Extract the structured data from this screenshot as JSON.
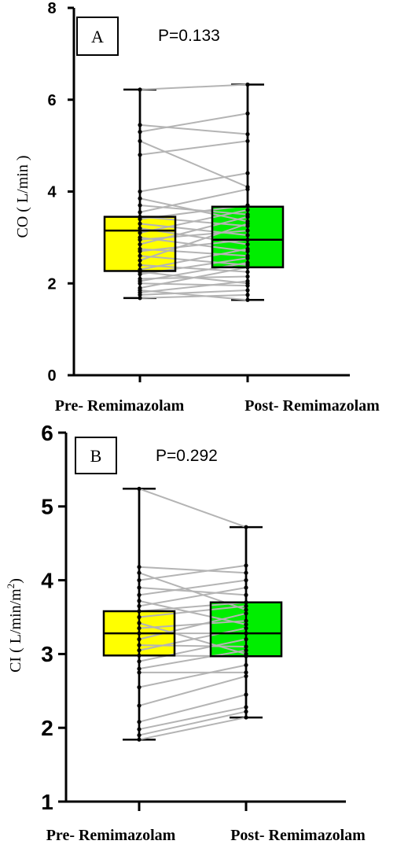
{
  "chart_data": [
    {
      "type": "box",
      "panel_label": "A",
      "p_value": "P=0.133",
      "ylabel": "CO ( L/min )",
      "ylim": [
        0,
        8
      ],
      "yticks": [
        0,
        2,
        4,
        6,
        8
      ],
      "categories": [
        "Pre- Remimazolam",
        "Post- Remimazolam"
      ],
      "box_colors": [
        "#ffff00",
        "#00ee00"
      ],
      "grid": false,
      "boxes": [
        {
          "min": 1.68,
          "q1": 2.27,
          "median": 3.15,
          "q3": 3.45,
          "max": 6.22
        },
        {
          "min": 1.64,
          "q1": 2.35,
          "median": 2.95,
          "q3": 3.67,
          "max": 6.33
        }
      ],
      "pairs": [
        [
          1.68,
          1.75
        ],
        [
          1.75,
          1.85
        ],
        [
          1.8,
          2.05
        ],
        [
          1.85,
          1.64
        ],
        [
          1.9,
          2.35
        ],
        [
          2.0,
          1.95
        ],
        [
          2.05,
          2.45
        ],
        [
          2.1,
          2.15
        ],
        [
          2.2,
          2.55
        ],
        [
          2.25,
          2.0
        ],
        [
          2.3,
          2.75
        ],
        [
          2.4,
          2.25
        ],
        [
          2.5,
          3.3
        ],
        [
          2.6,
          2.4
        ],
        [
          2.7,
          2.95
        ],
        [
          2.75,
          2.6
        ],
        [
          2.85,
          3.45
        ],
        [
          2.95,
          3.15
        ],
        [
          3.0,
          2.7
        ],
        [
          3.1,
          3.6
        ],
        [
          3.2,
          2.85
        ],
        [
          3.3,
          3.05
        ],
        [
          3.4,
          3.7
        ],
        [
          3.45,
          3.25
        ],
        [
          3.55,
          4.05
        ],
        [
          3.7,
          3.5
        ],
        [
          3.85,
          3.35
        ],
        [
          4.0,
          4.4
        ],
        [
          4.8,
          5.1
        ],
        [
          5.1,
          4.1
        ],
        [
          5.3,
          5.7
        ],
        [
          5.45,
          5.25
        ],
        [
          6.22,
          6.33
        ]
      ]
    },
    {
      "type": "box",
      "panel_label": "B",
      "p_value": "P=0.292",
      "ylabel": "CI ( L/min/m",
      "ylabel_superscript": "2",
      "ylabel_suffix": ")",
      "ylim": [
        1,
        6
      ],
      "yticks": [
        1,
        2,
        3,
        4,
        5,
        6
      ],
      "categories": [
        "Pre- Remimazolam",
        "Post- Remimazolam"
      ],
      "box_colors": [
        "#ffff00",
        "#00ee00"
      ],
      "grid": false,
      "boxes": [
        {
          "min": 1.84,
          "q1": 2.98,
          "median": 3.28,
          "q3": 3.58,
          "max": 5.24
        },
        {
          "min": 2.14,
          "q1": 2.97,
          "median": 3.28,
          "q3": 3.7,
          "max": 4.72
        }
      ],
      "pairs": [
        [
          1.84,
          2.14
        ],
        [
          1.9,
          2.22
        ],
        [
          1.98,
          2.28
        ],
        [
          2.08,
          2.45
        ],
        [
          2.3,
          2.7
        ],
        [
          2.55,
          2.85
        ],
        [
          2.75,
          2.75
        ],
        [
          2.8,
          3.05
        ],
        [
          2.9,
          3.2
        ],
        [
          2.98,
          2.97
        ],
        [
          3.05,
          3.35
        ],
        [
          3.12,
          3.1
        ],
        [
          3.2,
          3.55
        ],
        [
          3.28,
          3.28
        ],
        [
          3.35,
          3.45
        ],
        [
          3.42,
          3.0
        ],
        [
          3.5,
          3.65
        ],
        [
          3.58,
          3.7
        ],
        [
          3.65,
          3.9
        ],
        [
          3.72,
          3.4
        ],
        [
          3.8,
          4.0
        ],
        [
          3.9,
          3.8
        ],
        [
          4.0,
          4.2
        ],
        [
          4.1,
          3.6
        ],
        [
          4.18,
          4.1
        ],
        [
          5.24,
          4.72
        ]
      ]
    }
  ]
}
